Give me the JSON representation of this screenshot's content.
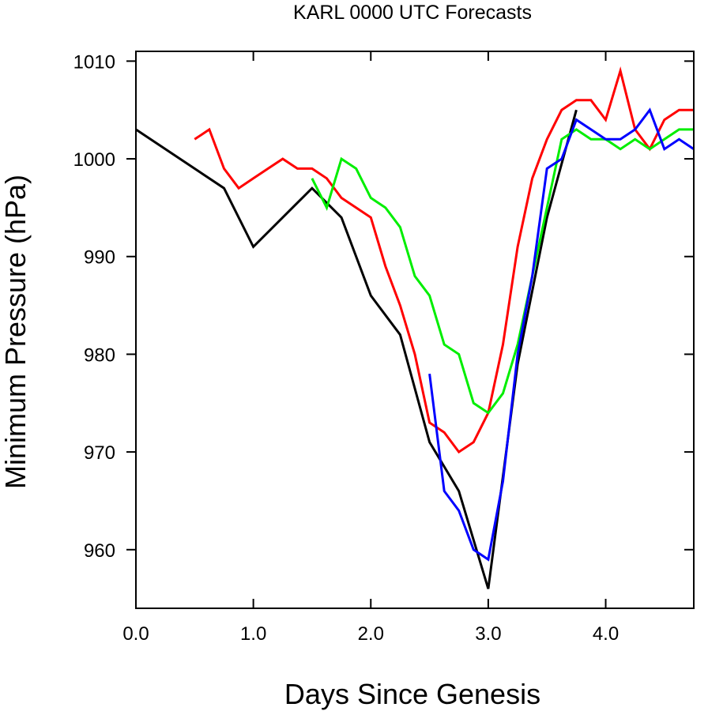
{
  "chart_data": {
    "type": "line",
    "title": "KARL 0000 UTC Forecasts",
    "xlabel": "Days Since Genesis",
    "ylabel": "Minimum Pressure (hPa)",
    "xlim": [
      0,
      4.75
    ],
    "ylim": [
      954,
      1011
    ],
    "x_ticks": [
      {
        "value": 0,
        "label": "0.0"
      },
      {
        "value": 1,
        "label": "1.0"
      },
      {
        "value": 2,
        "label": "2.0"
      },
      {
        "value": 3,
        "label": "3.0"
      },
      {
        "value": 4,
        "label": "4.0"
      }
    ],
    "y_ticks": [
      {
        "value": 960,
        "label": "960"
      },
      {
        "value": 970,
        "label": "970"
      },
      {
        "value": 980,
        "label": "980"
      },
      {
        "value": 990,
        "label": "990"
      },
      {
        "value": 1000,
        "label": "1000"
      },
      {
        "value": 1010,
        "label": "1010"
      }
    ],
    "grid": false,
    "series": [
      {
        "color": "#000000",
        "x": [
          0,
          0.75,
          1.0,
          1.5,
          1.75,
          2.0,
          2.25,
          2.5,
          2.75,
          3.0,
          3.25,
          3.5,
          3.75
        ],
        "y": [
          1003,
          997,
          991,
          997,
          994,
          986,
          982,
          971,
          966,
          956,
          979,
          994,
          1005
        ]
      },
      {
        "color": "#ff0000",
        "x": [
          0.5,
          0.625,
          0.75,
          0.875,
          1.0,
          1.125,
          1.25,
          1.375,
          1.5,
          1.625,
          1.75,
          1.875,
          2.0,
          2.125,
          2.25,
          2.375,
          2.5,
          2.625,
          2.75,
          2.875,
          3.0,
          3.125,
          3.25,
          3.375,
          3.5,
          3.625,
          3.75,
          3.875,
          4.0,
          4.125,
          4.25,
          4.375,
          4.5,
          4.625,
          4.75
        ],
        "y": [
          1002,
          1003,
          999,
          997,
          998,
          999,
          1000,
          999,
          999,
          998,
          996,
          995,
          994,
          989,
          985,
          980,
          973,
          972,
          970,
          971,
          974,
          981,
          991,
          998,
          1002,
          1005,
          1006,
          1006,
          1004,
          1009,
          1003,
          1001,
          1004,
          1005,
          1005
        ]
      },
      {
        "color": "#00ee00",
        "x": [
          1.5,
          1.625,
          1.75,
          1.875,
          2.0,
          2.125,
          2.25,
          2.375,
          2.5,
          2.625,
          2.75,
          2.875,
          3.0,
          3.125,
          3.25,
          3.375,
          3.5,
          3.625,
          3.75,
          3.875,
          4.0,
          4.125,
          4.25,
          4.375,
          4.5,
          4.625,
          4.75
        ],
        "y": [
          998,
          995,
          1000,
          999,
          996,
          995,
          993,
          988,
          986,
          981,
          980,
          975,
          974,
          976,
          981,
          988,
          995,
          1002,
          1003,
          1002,
          1002,
          1001,
          1002,
          1001,
          1002,
          1003,
          1003
        ]
      },
      {
        "color": "#0000ff",
        "x": [
          2.5,
          2.625,
          2.75,
          2.875,
          3.0,
          3.125,
          3.25,
          3.375,
          3.5,
          3.625,
          3.75,
          3.875,
          4.0,
          4.125,
          4.25,
          4.375,
          4.5,
          4.625,
          4.75
        ],
        "y": [
          978,
          966,
          964,
          960,
          959,
          967,
          980,
          988,
          999,
          1000,
          1004,
          1003,
          1002,
          1002,
          1003,
          1005,
          1001,
          1002,
          1001
        ]
      }
    ]
  }
}
